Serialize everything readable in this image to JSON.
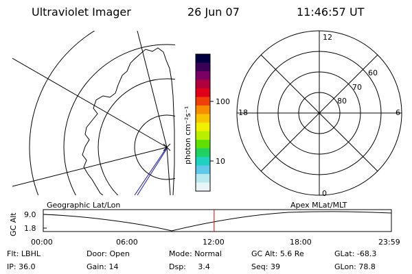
{
  "header": {
    "instrument": "Ultraviolet Imager",
    "date": "26 Jun 07",
    "time": "11:46:57 UT"
  },
  "colorbar": {
    "unit_label": "photon cm⁻²s⁻¹",
    "ticks": [
      "100",
      "10"
    ],
    "colors": [
      "#000040",
      "#3a0058",
      "#7a0063",
      "#b0003e",
      "#e0001a",
      "#f0400a",
      "#f78d00",
      "#f8c400",
      "#f0f000",
      "#b8f000",
      "#60e000",
      "#20d060",
      "#20d0c0",
      "#60c8e8",
      "#b8e8f0",
      "#e8f4f6"
    ]
  },
  "geo_map": {
    "label": "Geographic Lat/Lon",
    "subsat_color": "#1a1a9a"
  },
  "polar_plot": {
    "label": "Apex MLat/MLT",
    "mlt_labels": {
      "top": "12",
      "bottom": "0",
      "left": "18",
      "right": "6"
    },
    "lat_labels": [
      "60",
      "70",
      "80"
    ]
  },
  "altitude_plot": {
    "y_axis_label": "GC Alt",
    "y_ticks": [
      "9.0",
      "1.8"
    ],
    "x_ticks": [
      "00:00",
      "06:00",
      "12:00",
      "18:00",
      "23:59"
    ],
    "current_time_marker": 11.78,
    "marker_color": "#e00000"
  },
  "status": {
    "filter_label": "Flt:",
    "filter_value": "LBHL",
    "ip_label": "IP:",
    "ip_value": "36.0",
    "door_label": "Door:",
    "door_value": "Open",
    "gain_label": "Gain:",
    "gain_value": "14",
    "mode_label": "Mode:",
    "mode_value": "Normal",
    "dsp_label": "Dsp:",
    "dsp_value": "3.4",
    "gcalt_label": "GC Alt:",
    "gcalt_value": "5.6 Re",
    "seq_label": "Seq:",
    "seq_value": "39",
    "glat_label": "GLat:",
    "glat_value": "-68.3",
    "glon_label": "GLon:",
    "glon_value": "78.8"
  }
}
